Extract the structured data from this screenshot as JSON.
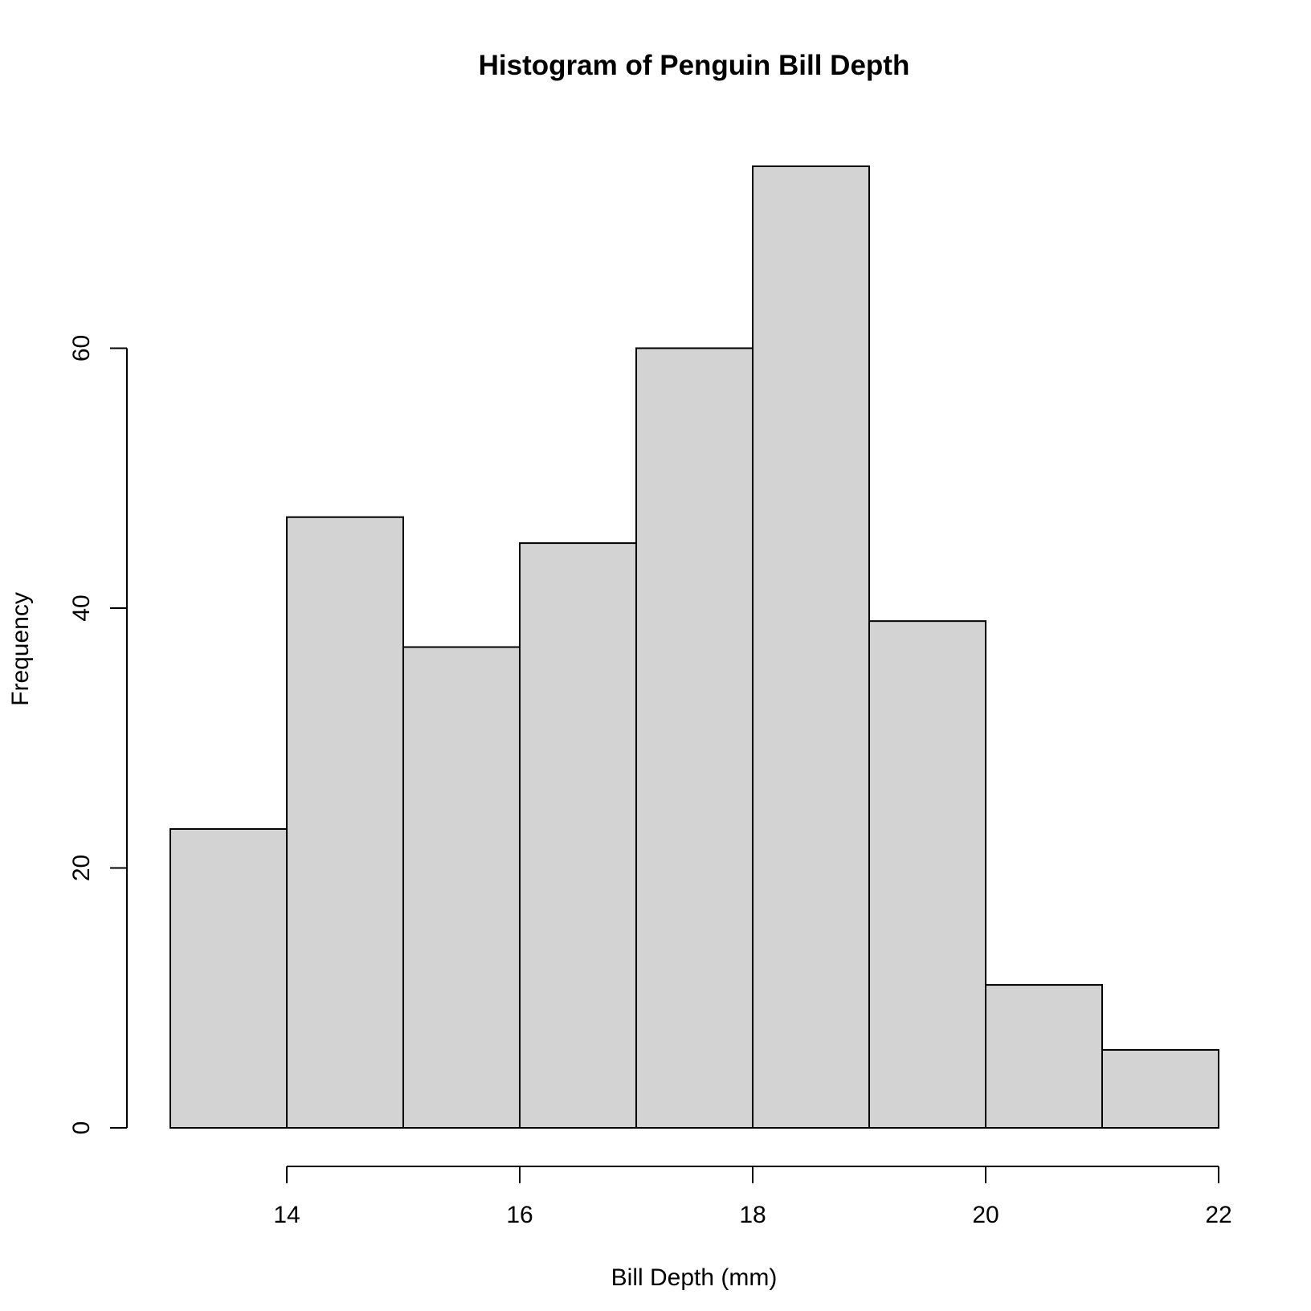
{
  "chart_data": {
    "type": "bar",
    "title": "Histogram of Penguin Bill Depth",
    "xlabel": "Bill Depth (mm)",
    "ylabel": "Frequency",
    "bins": [
      {
        "from": 13,
        "to": 14,
        "count": 23
      },
      {
        "from": 14,
        "to": 15,
        "count": 47
      },
      {
        "from": 15,
        "to": 16,
        "count": 37
      },
      {
        "from": 16,
        "to": 17,
        "count": 45
      },
      {
        "from": 17,
        "to": 18,
        "count": 60
      },
      {
        "from": 18,
        "to": 19,
        "count": 74
      },
      {
        "from": 19,
        "to": 20,
        "count": 39
      },
      {
        "from": 20,
        "to": 21,
        "count": 11
      },
      {
        "from": 21,
        "to": 22,
        "count": 6
      }
    ],
    "xlim": [
      13,
      22
    ],
    "ylim": [
      0,
      74
    ],
    "x_ticks": [
      14,
      16,
      18,
      20,
      22
    ],
    "y_ticks": [
      0,
      20,
      40,
      60
    ],
    "grid": false,
    "bar_color": "#d3d3d3",
    "edge_color": "#000000"
  }
}
